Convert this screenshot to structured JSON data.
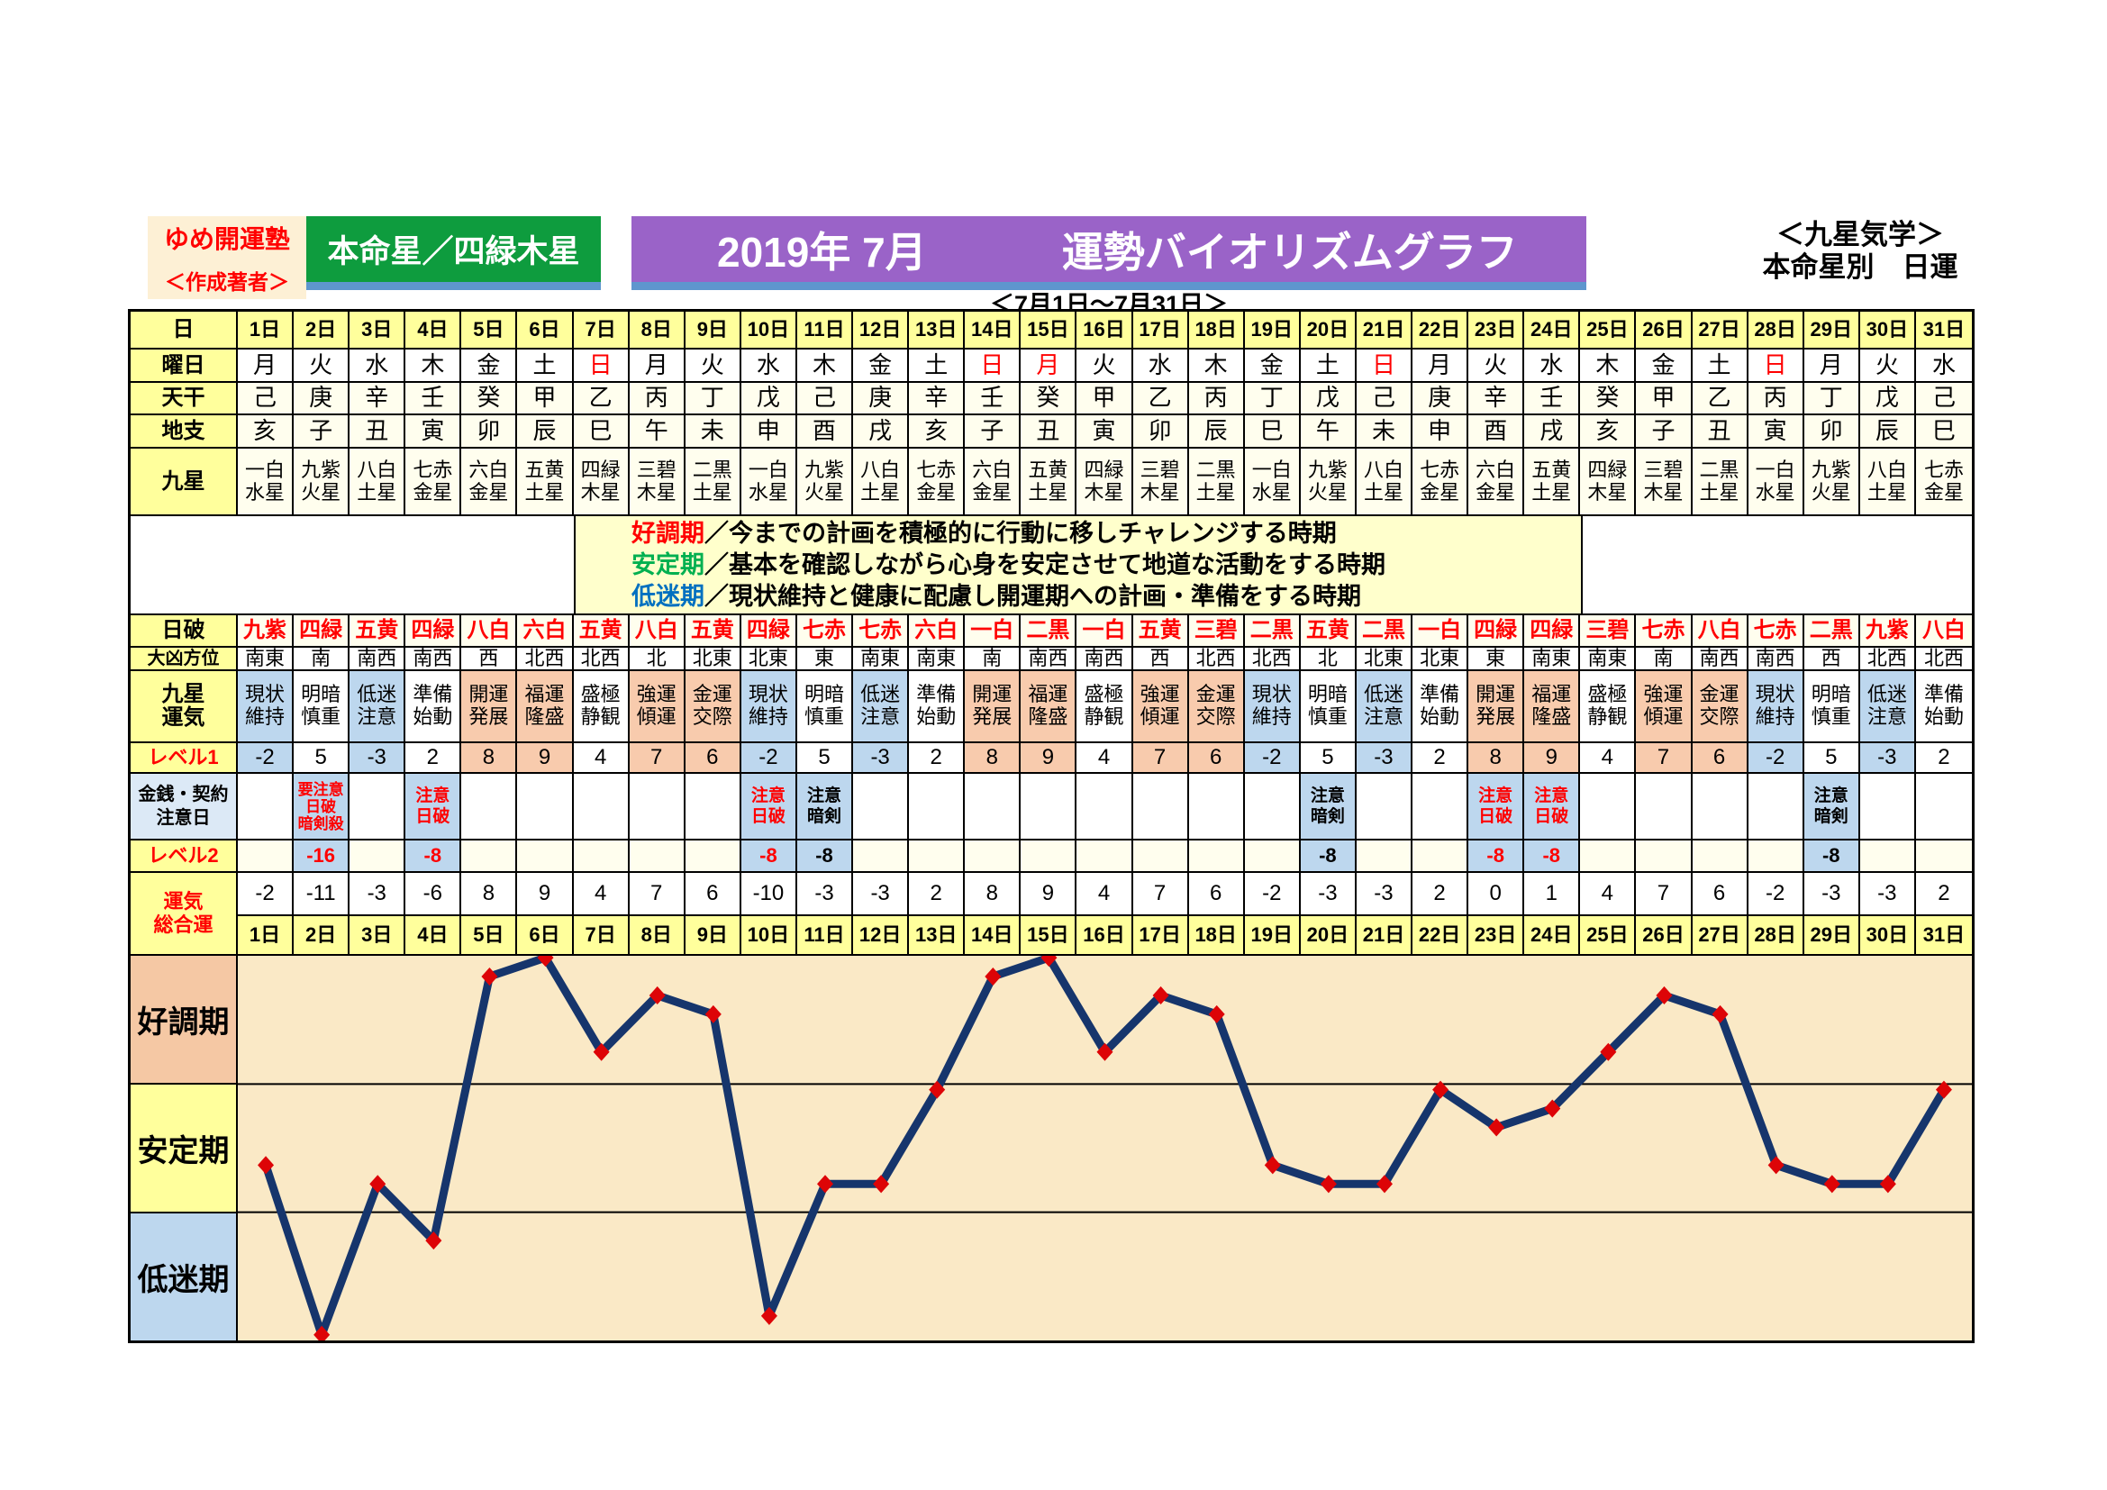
{
  "header": {
    "author_school": "ゆめ開運塾",
    "author_label": "＜作成著者＞",
    "honmeisei": "本命星／四緑木星",
    "title_year_month": "2019年 7月",
    "title_main": "運勢バイオリズムグラフ",
    "right_line1": "＜九星気学＞",
    "right_line2": "本命星別　日運",
    "period": "＜7月1日～7月31日＞"
  },
  "row_labels": {
    "day": "日",
    "weekday": "曜日",
    "tenkan": "天干",
    "chishi": "地支",
    "kyusei": "九星",
    "nichiha": "日破",
    "daikyo": "大凶方位",
    "unki": [
      "九星",
      "運気"
    ],
    "level1": "レベル1",
    "kinsen": [
      "金銭・契約",
      "注意日"
    ],
    "level2": "レベル2",
    "total": [
      "運気",
      "総合運"
    ]
  },
  "legend": [
    {
      "term": "好調期",
      "color": "#FF0000",
      "desc": "／今までの計画を積極的に行動に移しチャレンジする時期"
    },
    {
      "term": "安定期",
      "color": "#00B050",
      "desc": "／基本を確認しながら心身を安定させて地道な活動をする時期"
    },
    {
      "term": "低迷期",
      "color": "#0070C0",
      "desc": "／現状維持と健康に配慮し開運期への計画・準備をする時期"
    }
  ],
  "zones": [
    {
      "label": "好調期",
      "bg": "#F5C8A4"
    },
    {
      "label": "安定期",
      "bg": "#FFFF9C"
    },
    {
      "label": "低迷期",
      "bg": "#BDD7EE"
    }
  ],
  "colors": {
    "cell_blue": "#BDD7EE",
    "cell_orange": "#F8CBAD",
    "cell_ivory": "#FFFEEE",
    "header_yellow": "#FFFF9C",
    "legend_bg": "#FFFFCC",
    "plot_bg": "#FAE9C6",
    "line": "#16356C",
    "marker": "#DD0407",
    "red_text": "#FF0000"
  },
  "days": [
    {
      "d": "1日",
      "w": "月",
      "wr": false,
      "tk": "己",
      "cs": "亥",
      "ks": [
        "一白",
        "水星"
      ],
      "nh": "九紫",
      "dk": "南東",
      "un": [
        "現状",
        "維持"
      ],
      "ut": "b",
      "l1": "-2",
      "note": null,
      "nr": false,
      "l2": null,
      "lr": false,
      "tt": "-2"
    },
    {
      "d": "2日",
      "w": "火",
      "wr": false,
      "tk": "庚",
      "cs": "子",
      "ks": [
        "九紫",
        "火星"
      ],
      "nh": "四緑",
      "dk": "南",
      "un": [
        "明暗",
        "慎重"
      ],
      "ut": "w",
      "l1": "5",
      "note": [
        "要注意",
        "日破",
        "暗剣殺"
      ],
      "nr": true,
      "l2": "-16",
      "lr": true,
      "tt": "-11"
    },
    {
      "d": "3日",
      "w": "水",
      "wr": false,
      "tk": "辛",
      "cs": "丑",
      "ks": [
        "八白",
        "土星"
      ],
      "nh": "五黄",
      "dk": "南西",
      "un": [
        "低迷",
        "注意"
      ],
      "ut": "b",
      "l1": "-3",
      "note": null,
      "nr": false,
      "l2": null,
      "lr": false,
      "tt": "-3"
    },
    {
      "d": "4日",
      "w": "木",
      "wr": false,
      "tk": "壬",
      "cs": "寅",
      "ks": [
        "七赤",
        "金星"
      ],
      "nh": "四緑",
      "dk": "南西",
      "un": [
        "準備",
        "始動"
      ],
      "ut": "w",
      "l1": "2",
      "note": [
        "注意",
        "日破"
      ],
      "nr": true,
      "l2": "-8",
      "lr": true,
      "tt": "-6"
    },
    {
      "d": "5日",
      "w": "金",
      "wr": false,
      "tk": "癸",
      "cs": "卯",
      "ks": [
        "六白",
        "金星"
      ],
      "nh": "八白",
      "dk": "西",
      "un": [
        "開運",
        "発展"
      ],
      "ut": "o",
      "l1": "8",
      "note": null,
      "nr": false,
      "l2": null,
      "lr": false,
      "tt": "8"
    },
    {
      "d": "6日",
      "w": "土",
      "wr": false,
      "tk": "甲",
      "cs": "辰",
      "ks": [
        "五黄",
        "土星"
      ],
      "nh": "六白",
      "dk": "北西",
      "un": [
        "福運",
        "隆盛"
      ],
      "ut": "o",
      "l1": "9",
      "note": null,
      "nr": false,
      "l2": null,
      "lr": false,
      "tt": "9"
    },
    {
      "d": "7日",
      "w": "日",
      "wr": true,
      "tk": "乙",
      "cs": "巳",
      "ks": [
        "四緑",
        "木星"
      ],
      "nh": "五黄",
      "dk": "北西",
      "un": [
        "盛極",
        "静観"
      ],
      "ut": "w",
      "l1": "4",
      "note": null,
      "nr": false,
      "l2": null,
      "lr": false,
      "tt": "4"
    },
    {
      "d": "8日",
      "w": "月",
      "wr": false,
      "tk": "丙",
      "cs": "午",
      "ks": [
        "三碧",
        "木星"
      ],
      "nh": "八白",
      "dk": "北",
      "un": [
        "強運",
        "傾運"
      ],
      "ut": "o",
      "l1": "7",
      "note": null,
      "nr": false,
      "l2": null,
      "lr": false,
      "tt": "7"
    },
    {
      "d": "9日",
      "w": "火",
      "wr": false,
      "tk": "丁",
      "cs": "未",
      "ks": [
        "二黒",
        "土星"
      ],
      "nh": "五黄",
      "dk": "北東",
      "un": [
        "金運",
        "交際"
      ],
      "ut": "o",
      "l1": "6",
      "note": null,
      "nr": false,
      "l2": null,
      "lr": false,
      "tt": "6"
    },
    {
      "d": "10日",
      "w": "水",
      "wr": false,
      "tk": "戊",
      "cs": "申",
      "ks": [
        "一白",
        "水星"
      ],
      "nh": "四緑",
      "dk": "北東",
      "un": [
        "現状",
        "維持"
      ],
      "ut": "b",
      "l1": "-2",
      "note": [
        "注意",
        "日破"
      ],
      "nr": true,
      "l2": "-8",
      "lr": true,
      "tt": "-10"
    },
    {
      "d": "11日",
      "w": "木",
      "wr": false,
      "tk": "己",
      "cs": "酉",
      "ks": [
        "九紫",
        "火星"
      ],
      "nh": "七赤",
      "dk": "東",
      "un": [
        "明暗",
        "慎重"
      ],
      "ut": "w",
      "l1": "5",
      "note": [
        "注意",
        "暗剣"
      ],
      "nr": false,
      "l2": "-8",
      "lr": false,
      "tt": "-3"
    },
    {
      "d": "12日",
      "w": "金",
      "wr": false,
      "tk": "庚",
      "cs": "戌",
      "ks": [
        "八白",
        "土星"
      ],
      "nh": "七赤",
      "dk": "南東",
      "un": [
        "低迷",
        "注意"
      ],
      "ut": "b",
      "l1": "-3",
      "note": null,
      "nr": false,
      "l2": null,
      "lr": false,
      "tt": "-3"
    },
    {
      "d": "13日",
      "w": "土",
      "wr": false,
      "tk": "辛",
      "cs": "亥",
      "ks": [
        "七赤",
        "金星"
      ],
      "nh": "六白",
      "dk": "南東",
      "un": [
        "準備",
        "始動"
      ],
      "ut": "w",
      "l1": "2",
      "note": null,
      "nr": false,
      "l2": null,
      "lr": false,
      "tt": "2"
    },
    {
      "d": "14日",
      "w": "日",
      "wr": true,
      "tk": "壬",
      "cs": "子",
      "ks": [
        "六白",
        "金星"
      ],
      "nh": "一白",
      "dk": "南",
      "un": [
        "開運",
        "発展"
      ],
      "ut": "o",
      "l1": "8",
      "note": null,
      "nr": false,
      "l2": null,
      "lr": false,
      "tt": "8"
    },
    {
      "d": "15日",
      "w": "月",
      "wr": true,
      "tk": "癸",
      "cs": "丑",
      "ks": [
        "五黄",
        "土星"
      ],
      "nh": "二黒",
      "dk": "南西",
      "un": [
        "福運",
        "隆盛"
      ],
      "ut": "o",
      "l1": "9",
      "note": null,
      "nr": false,
      "l2": null,
      "lr": false,
      "tt": "9"
    },
    {
      "d": "16日",
      "w": "火",
      "wr": false,
      "tk": "甲",
      "cs": "寅",
      "ks": [
        "四緑",
        "木星"
      ],
      "nh": "一白",
      "dk": "南西",
      "un": [
        "盛極",
        "静観"
      ],
      "ut": "w",
      "l1": "4",
      "note": null,
      "nr": false,
      "l2": null,
      "lr": false,
      "tt": "4"
    },
    {
      "d": "17日",
      "w": "水",
      "wr": false,
      "tk": "乙",
      "cs": "卯",
      "ks": [
        "三碧",
        "木星"
      ],
      "nh": "五黄",
      "dk": "西",
      "un": [
        "強運",
        "傾運"
      ],
      "ut": "o",
      "l1": "7",
      "note": null,
      "nr": false,
      "l2": null,
      "lr": false,
      "tt": "7"
    },
    {
      "d": "18日",
      "w": "木",
      "wr": false,
      "tk": "丙",
      "cs": "辰",
      "ks": [
        "二黒",
        "土星"
      ],
      "nh": "三碧",
      "dk": "北西",
      "un": [
        "金運",
        "交際"
      ],
      "ut": "o",
      "l1": "6",
      "note": null,
      "nr": false,
      "l2": null,
      "lr": false,
      "tt": "6"
    },
    {
      "d": "19日",
      "w": "金",
      "wr": false,
      "tk": "丁",
      "cs": "巳",
      "ks": [
        "一白",
        "水星"
      ],
      "nh": "二黒",
      "dk": "北西",
      "un": [
        "現状",
        "維持"
      ],
      "ut": "b",
      "l1": "-2",
      "note": null,
      "nr": false,
      "l2": null,
      "lr": false,
      "tt": "-2"
    },
    {
      "d": "20日",
      "w": "土",
      "wr": false,
      "tk": "戊",
      "cs": "午",
      "ks": [
        "九紫",
        "火星"
      ],
      "nh": "五黄",
      "dk": "北",
      "un": [
        "明暗",
        "慎重"
      ],
      "ut": "w",
      "l1": "5",
      "note": [
        "注意",
        "暗剣"
      ],
      "nr": false,
      "l2": "-8",
      "lr": false,
      "tt": "-3"
    },
    {
      "d": "21日",
      "w": "日",
      "wr": true,
      "tk": "己",
      "cs": "未",
      "ks": [
        "八白",
        "土星"
      ],
      "nh": "二黒",
      "dk": "北東",
      "un": [
        "低迷",
        "注意"
      ],
      "ut": "b",
      "l1": "-3",
      "note": null,
      "nr": false,
      "l2": null,
      "lr": false,
      "tt": "-3"
    },
    {
      "d": "22日",
      "w": "月",
      "wr": false,
      "tk": "庚",
      "cs": "申",
      "ks": [
        "七赤",
        "金星"
      ],
      "nh": "一白",
      "dk": "北東",
      "un": [
        "準備",
        "始動"
      ],
      "ut": "w",
      "l1": "2",
      "note": null,
      "nr": false,
      "l2": null,
      "lr": false,
      "tt": "2"
    },
    {
      "d": "23日",
      "w": "火",
      "wr": false,
      "tk": "辛",
      "cs": "酉",
      "ks": [
        "六白",
        "金星"
      ],
      "nh": "四緑",
      "dk": "東",
      "un": [
        "開運",
        "発展"
      ],
      "ut": "o",
      "l1": "8",
      "note": [
        "注意",
        "日破"
      ],
      "nr": true,
      "l2": "-8",
      "lr": true,
      "tt": "0"
    },
    {
      "d": "24日",
      "w": "水",
      "wr": false,
      "tk": "壬",
      "cs": "戌",
      "ks": [
        "五黄",
        "土星"
      ],
      "nh": "四緑",
      "dk": "南東",
      "un": [
        "福運",
        "隆盛"
      ],
      "ut": "o",
      "l1": "9",
      "note": [
        "注意",
        "日破"
      ],
      "nr": true,
      "l2": "-8",
      "lr": true,
      "tt": "1"
    },
    {
      "d": "25日",
      "w": "木",
      "wr": false,
      "tk": "癸",
      "cs": "亥",
      "ks": [
        "四緑",
        "木星"
      ],
      "nh": "三碧",
      "dk": "南東",
      "un": [
        "盛極",
        "静観"
      ],
      "ut": "w",
      "l1": "4",
      "note": null,
      "nr": false,
      "l2": null,
      "lr": false,
      "tt": "4"
    },
    {
      "d": "26日",
      "w": "金",
      "wr": false,
      "tk": "甲",
      "cs": "子",
      "ks": [
        "三碧",
        "木星"
      ],
      "nh": "七赤",
      "dk": "南",
      "un": [
        "強運",
        "傾運"
      ],
      "ut": "o",
      "l1": "7",
      "note": null,
      "nr": false,
      "l2": null,
      "lr": false,
      "tt": "7"
    },
    {
      "d": "27日",
      "w": "土",
      "wr": false,
      "tk": "乙",
      "cs": "丑",
      "ks": [
        "二黒",
        "土星"
      ],
      "nh": "八白",
      "dk": "南西",
      "un": [
        "金運",
        "交際"
      ],
      "ut": "o",
      "l1": "6",
      "note": null,
      "nr": false,
      "l2": null,
      "lr": false,
      "tt": "6"
    },
    {
      "d": "28日",
      "w": "日",
      "wr": true,
      "tk": "丙",
      "cs": "寅",
      "ks": [
        "一白",
        "水星"
      ],
      "nh": "七赤",
      "dk": "南西",
      "un": [
        "現状",
        "維持"
      ],
      "ut": "b",
      "l1": "-2",
      "note": null,
      "nr": false,
      "l2": null,
      "lr": false,
      "tt": "-2"
    },
    {
      "d": "29日",
      "w": "月",
      "wr": false,
      "tk": "丁",
      "cs": "卯",
      "ks": [
        "九紫",
        "火星"
      ],
      "nh": "二黒",
      "dk": "西",
      "un": [
        "明暗",
        "慎重"
      ],
      "ut": "w",
      "l1": "5",
      "note": [
        "注意",
        "暗剣"
      ],
      "nr": false,
      "l2": "-8",
      "lr": false,
      "tt": "-3"
    },
    {
      "d": "30日",
      "w": "火",
      "wr": false,
      "tk": "戊",
      "cs": "辰",
      "ks": [
        "八白",
        "土星"
      ],
      "nh": "九紫",
      "dk": "北西",
      "un": [
        "低迷",
        "注意"
      ],
      "ut": "b",
      "l1": "-3",
      "note": null,
      "nr": false,
      "l2": null,
      "lr": false,
      "tt": "-3"
    },
    {
      "d": "31日",
      "w": "水",
      "wr": false,
      "tk": "己",
      "cs": "巳",
      "ks": [
        "七赤",
        "金星"
      ],
      "nh": "八白",
      "dk": "北西",
      "un": [
        "準備",
        "始動"
      ],
      "ut": "w",
      "l1": "2",
      "note": null,
      "nr": false,
      "l2": null,
      "lr": false,
      "tt": "2"
    }
  ],
  "chart_data": {
    "type": "line",
    "title": "2019年 7月 運勢バイオリズムグラフ（運気総合運）",
    "x": [
      1,
      2,
      3,
      4,
      5,
      6,
      7,
      8,
      9,
      10,
      11,
      12,
      13,
      14,
      15,
      16,
      17,
      18,
      19,
      20,
      21,
      22,
      23,
      24,
      25,
      26,
      27,
      28,
      29,
      30,
      31
    ],
    "categories": [
      "1日",
      "2日",
      "3日",
      "4日",
      "5日",
      "6日",
      "7日",
      "8日",
      "9日",
      "10日",
      "11日",
      "12日",
      "13日",
      "14日",
      "15日",
      "16日",
      "17日",
      "18日",
      "19日",
      "20日",
      "21日",
      "22日",
      "23日",
      "24日",
      "25日",
      "26日",
      "27日",
      "28日",
      "29日",
      "30日",
      "31日"
    ],
    "values": [
      -2,
      -11,
      -3,
      -6,
      8,
      9,
      4,
      7,
      6,
      -10,
      -3,
      -3,
      2,
      8,
      9,
      4,
      7,
      6,
      -2,
      -3,
      -3,
      2,
      0,
      1,
      4,
      7,
      6,
      -2,
      -3,
      -3,
      2
    ],
    "ylim": [
      -11.3,
      9.1
    ],
    "zone_boundaries": [
      2.3,
      -4.5
    ],
    "zone_labels": [
      "好調期",
      "安定期",
      "低迷期"
    ],
    "grid": false,
    "legend_position": "none",
    "marker": "red-diamond",
    "line_color": "#16356C"
  }
}
